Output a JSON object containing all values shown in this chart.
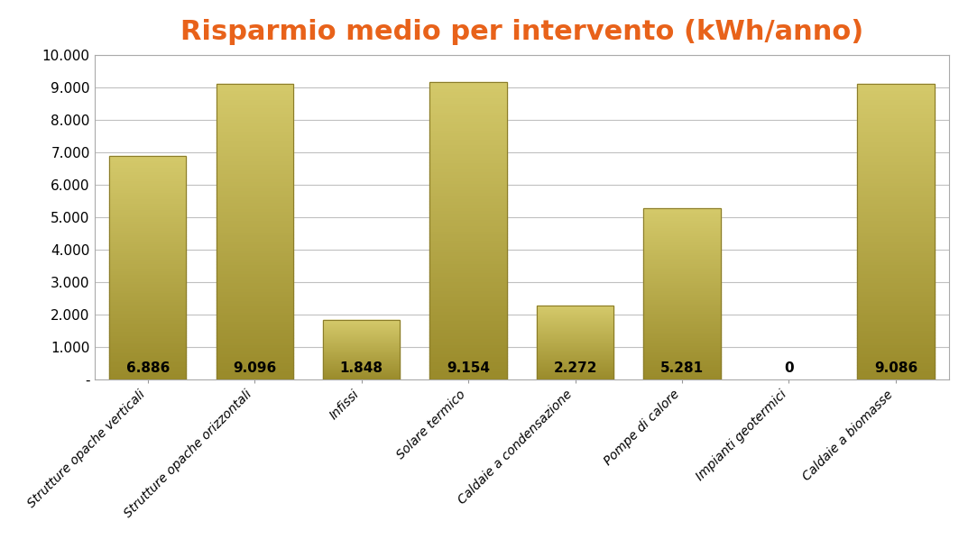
{
  "title": "Risparmio medio per intervento (kWh/anno)",
  "title_color": "#E8621A",
  "title_fontsize": 22,
  "categories": [
    "Strutture opache verticali",
    "Strutture opache orizzontali",
    "Infissi",
    "Solare termico",
    "Caldaie a condensazione",
    "Pompe di calore",
    "Impianti geotermici",
    "Caldaie a biomasse"
  ],
  "values": [
    6886,
    9096,
    1848,
    9154,
    2272,
    5281,
    0,
    9086
  ],
  "labels": [
    "6.886",
    "9.096",
    "1.848",
    "9.154",
    "2.272",
    "5.281",
    "0",
    "9.086"
  ],
  "bar_color_main": "#B5A642",
  "bar_color_light": "#D4C96A",
  "bar_color_dark": "#8B7D2A",
  "bar_width": 0.72,
  "ylim": [
    0,
    10000
  ],
  "yticks": [
    0,
    1000,
    2000,
    3000,
    4000,
    5000,
    6000,
    7000,
    8000,
    9000,
    10000
  ],
  "ytick_labels": [
    "-",
    "1.000",
    "2.000",
    "3.000",
    "4.000",
    "5.000",
    "6.000",
    "7.000",
    "8.000",
    "9.000",
    "10.000"
  ],
  "background_color": "#FFFFFF",
  "plot_bg_color": "#FFFFFF",
  "grid_color": "#C0C0C0",
  "label_fontsize": 10,
  "tick_fontsize": 11,
  "value_label_fontsize": 11,
  "value_label_color": "#000000"
}
